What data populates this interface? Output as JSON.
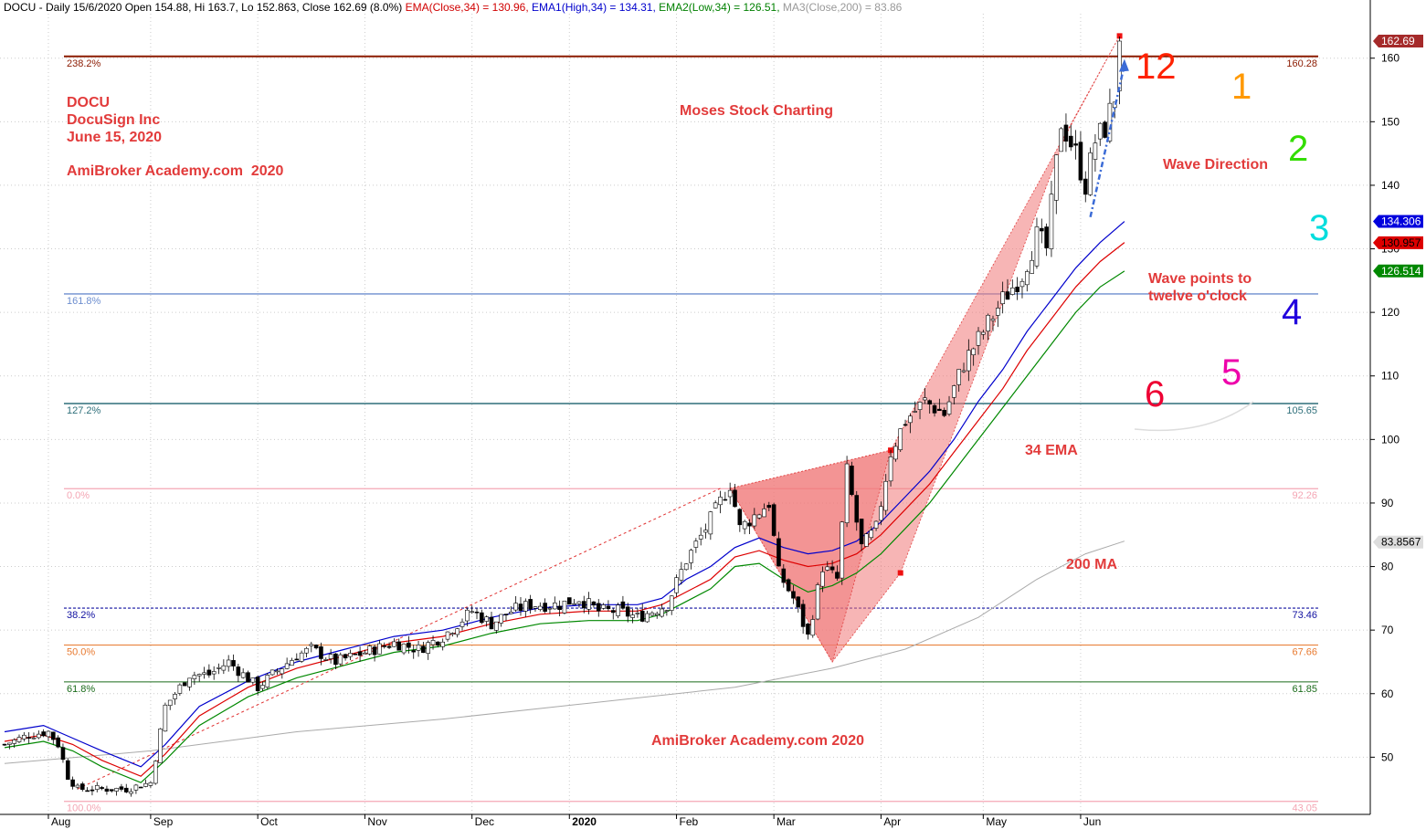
{
  "header": {
    "symbol_info": "DOCU - Daily 15/6/2020 Open 154.88, Hi 163.7, Lo 152.863, Close 162.69 (8.0%)",
    "ema_close": {
      "label": "EMA(Close,34) = 130.96,",
      "color": "#d00000"
    },
    "ema_high": {
      "label": "EMA1(High,34) = 134.31,",
      "color": "#0000cc"
    },
    "ema_low": {
      "label": "EMA2(Low,34) = 126.51,",
      "color": "#008000"
    },
    "ma200": {
      "label": "MA3(Close,200) = 83.86",
      "color": "#999999"
    }
  },
  "annotations": {
    "info_lines": [
      "DOCU",
      "DocuSign Inc",
      "June 15, 2020"
    ],
    "site_top": "AmiBroker Academy.com  2020",
    "title_center": "Moses Stock Charting",
    "site_bottom": "AmiBroker Academy.com 2020",
    "ema_label": "34 EMA",
    "ma_label": "200 MA",
    "wave_direction": "Wave Direction",
    "wave_points": [
      "Wave points to",
      "twelve o'clock"
    ]
  },
  "clock": [
    {
      "n": "12",
      "color": "#ff2200"
    },
    {
      "n": "1",
      "color": "#ff9900"
    },
    {
      "n": "2",
      "color": "#33dd00"
    },
    {
      "n": "3",
      "color": "#00dddd"
    },
    {
      "n": "4",
      "color": "#2200dd"
    },
    {
      "n": "5",
      "color": "#ee00aa"
    },
    {
      "n": "6",
      "color": "#ee0033"
    }
  ],
  "price_tags": [
    {
      "value": "162.69",
      "bg": "#a52a2a",
      "fg": "#ffffff",
      "y": 162.69
    },
    {
      "value": "134.306",
      "bg": "#0000dd",
      "fg": "#ffffff",
      "y": 134.306
    },
    {
      "value": "130.957",
      "bg": "#dd0000",
      "fg": "#000000",
      "y": 130.957
    },
    {
      "value": "126.514",
      "bg": "#008800",
      "fg": "#ffffff",
      "y": 126.514
    },
    {
      "value": "83.8567",
      "bg": "#dddddd",
      "fg": "#000000",
      "y": 83.8567
    }
  ],
  "chart_data": {
    "type": "candlestick",
    "title": "DOCU - Daily 15/6/2020",
    "ylim": [
      41,
      167
    ],
    "y_ticks": [
      50,
      60,
      70,
      80,
      90,
      100,
      110,
      120,
      130,
      140,
      150,
      160
    ],
    "x_ticks": [
      "Aug",
      "Sep",
      "Oct",
      "Nov",
      "Dec",
      "2020",
      "Feb",
      "Mar",
      "Apr",
      "May",
      "Jun"
    ],
    "x_tick_days": [
      9,
      30,
      52,
      74,
      96,
      116,
      138,
      158,
      180,
      201,
      221
    ],
    "n_days": 235,
    "fib_levels": [
      {
        "pct": "238.2%",
        "value": "160.28",
        "y": 160.28,
        "color": "#8b1a00",
        "width": 2,
        "dash": ""
      },
      {
        "pct": "161.8%",
        "value": "",
        "y": 122.9,
        "color": "#6d8ecf",
        "width": 1.3,
        "dash": ""
      },
      {
        "pct": "127.2%",
        "value": "105.65",
        "y": 105.65,
        "color": "#2e6f7a",
        "width": 1.5,
        "dash": ""
      },
      {
        "pct": "0.0%",
        "value": "92.26",
        "y": 92.26,
        "color": "#f4a6b4",
        "width": 1.3,
        "dash": ""
      },
      {
        "pct": "38.2%",
        "value": "73.46",
        "y": 73.46,
        "color": "#1010a0",
        "width": 1.2,
        "dash": "3,2"
      },
      {
        "pct": "50.0%",
        "value": "67.66",
        "y": 67.66,
        "color": "#e87a30",
        "width": 1,
        "dash": ""
      },
      {
        "pct": "61.8%",
        "value": "61.85",
        "y": 61.85,
        "color": "#1a6b1a",
        "width": 1,
        "dash": ""
      },
      {
        "pct": "100.0%",
        "value": "43.05",
        "y": 43.05,
        "color": "#f4a6b4",
        "width": 1.3,
        "dash": ""
      }
    ],
    "close_path": [
      [
        0,
        52
      ],
      [
        5,
        53.5
      ],
      [
        9,
        54
      ],
      [
        11,
        52
      ],
      [
        13,
        47
      ],
      [
        15,
        45
      ],
      [
        20,
        45
      ],
      [
        25,
        45
      ],
      [
        30,
        46
      ],
      [
        33,
        58
      ],
      [
        38,
        63
      ],
      [
        42,
        63
      ],
      [
        46,
        65
      ],
      [
        52,
        61
      ],
      [
        55,
        63
      ],
      [
        60,
        66
      ],
      [
        63,
        67
      ],
      [
        68,
        65
      ],
      [
        72,
        66
      ],
      [
        76,
        67
      ],
      [
        80,
        68
      ],
      [
        85,
        67
      ],
      [
        90,
        69
      ],
      [
        96,
        73
      ],
      [
        100,
        71
      ],
      [
        104,
        73
      ],
      [
        108,
        74
      ],
      [
        114,
        74
      ],
      [
        118,
        75
      ],
      [
        122,
        73
      ],
      [
        126,
        73
      ],
      [
        130,
        72
      ],
      [
        136,
        74
      ],
      [
        140,
        81
      ],
      [
        144,
        86
      ],
      [
        149,
        93
      ],
      [
        151,
        86
      ],
      [
        154,
        88
      ],
      [
        157,
        90
      ],
      [
        159,
        79
      ],
      [
        162,
        75
      ],
      [
        165,
        69
      ],
      [
        168,
        80
      ],
      [
        171,
        78
      ],
      [
        173,
        95
      ],
      [
        176,
        83
      ],
      [
        179,
        86
      ],
      [
        182,
        98
      ],
      [
        185,
        103
      ],
      [
        189,
        106
      ],
      [
        193,
        104
      ],
      [
        197,
        112
      ],
      [
        201,
        117
      ],
      [
        205,
        122
      ],
      [
        209,
        126
      ],
      [
        212,
        132
      ],
      [
        214,
        130
      ],
      [
        217,
        150
      ],
      [
        220,
        145
      ],
      [
        222,
        140
      ],
      [
        224,
        147
      ],
      [
        226,
        149
      ],
      [
        228,
        154
      ],
      [
        229,
        162.69
      ]
    ],
    "ema_high": [
      [
        0,
        54
      ],
      [
        8,
        55
      ],
      [
        14,
        53
      ],
      [
        20,
        51
      ],
      [
        28,
        48.5
      ],
      [
        33,
        52
      ],
      [
        40,
        58
      ],
      [
        50,
        62
      ],
      [
        60,
        65
      ],
      [
        70,
        67
      ],
      [
        80,
        69
      ],
      [
        90,
        70
      ],
      [
        100,
        72
      ],
      [
        110,
        73.5
      ],
      [
        120,
        74
      ],
      [
        130,
        74
      ],
      [
        135,
        75
      ],
      [
        140,
        78
      ],
      [
        145,
        80
      ],
      [
        150,
        83
      ],
      [
        155,
        84.5
      ],
      [
        160,
        83
      ],
      [
        165,
        82
      ],
      [
        170,
        82.5
      ],
      [
        175,
        84
      ],
      [
        180,
        87
      ],
      [
        185,
        91
      ],
      [
        190,
        95
      ],
      [
        195,
        100
      ],
      [
        200,
        106
      ],
      [
        205,
        111
      ],
      [
        210,
        117
      ],
      [
        215,
        122
      ],
      [
        220,
        127
      ],
      [
        225,
        131
      ],
      [
        230,
        134.3
      ]
    ],
    "ema_close": [
      [
        0,
        52.5
      ],
      [
        8,
        53.5
      ],
      [
        14,
        52
      ],
      [
        20,
        49.5
      ],
      [
        28,
        47
      ],
      [
        33,
        50.5
      ],
      [
        40,
        56.5
      ],
      [
        50,
        61
      ],
      [
        60,
        64
      ],
      [
        70,
        66
      ],
      [
        80,
        68
      ],
      [
        90,
        69
      ],
      [
        100,
        71
      ],
      [
        110,
        72.5
      ],
      [
        120,
        73
      ],
      [
        130,
        73
      ],
      [
        135,
        74
      ],
      [
        140,
        76
      ],
      [
        145,
        78
      ],
      [
        150,
        81.5
      ],
      [
        155,
        82.5
      ],
      [
        160,
        81
      ],
      [
        165,
        80
      ],
      [
        170,
        80.5
      ],
      [
        175,
        82
      ],
      [
        180,
        85
      ],
      [
        185,
        89
      ],
      [
        190,
        93
      ],
      [
        195,
        98
      ],
      [
        200,
        103
      ],
      [
        205,
        108
      ],
      [
        210,
        114
      ],
      [
        215,
        119
      ],
      [
        220,
        124
      ],
      [
        225,
        128
      ],
      [
        230,
        131
      ]
    ],
    "ema_low": [
      [
        0,
        51.5
      ],
      [
        8,
        52.5
      ],
      [
        14,
        51
      ],
      [
        20,
        48.5
      ],
      [
        28,
        46
      ],
      [
        33,
        49.5
      ],
      [
        40,
        55
      ],
      [
        50,
        59.5
      ],
      [
        60,
        62.5
      ],
      [
        70,
        64.5
      ],
      [
        80,
        66.5
      ],
      [
        90,
        67.5
      ],
      [
        100,
        69.5
      ],
      [
        110,
        71
      ],
      [
        120,
        71.5
      ],
      [
        130,
        71.5
      ],
      [
        135,
        72.5
      ],
      [
        140,
        74.5
      ],
      [
        145,
        76.5
      ],
      [
        150,
        80
      ],
      [
        155,
        80.5
      ],
      [
        160,
        78
      ],
      [
        165,
        76
      ],
      [
        170,
        77
      ],
      [
        175,
        79
      ],
      [
        180,
        82
      ],
      [
        185,
        86
      ],
      [
        190,
        90
      ],
      [
        195,
        95
      ],
      [
        200,
        100
      ],
      [
        205,
        105
      ],
      [
        210,
        110
      ],
      [
        215,
        115
      ],
      [
        220,
        120
      ],
      [
        225,
        124
      ],
      [
        230,
        126.5
      ]
    ],
    "ma200": [
      [
        0,
        49
      ],
      [
        30,
        51
      ],
      [
        60,
        54
      ],
      [
        90,
        56
      ],
      [
        120,
        58.5
      ],
      [
        150,
        61
      ],
      [
        170,
        64
      ],
      [
        185,
        67
      ],
      [
        200,
        72
      ],
      [
        212,
        78
      ],
      [
        222,
        82
      ],
      [
        230,
        84
      ]
    ],
    "wedge_top": [
      [
        149,
        92.3
      ],
      [
        182,
        98.3
      ],
      [
        229,
        163.5
      ]
    ],
    "wedge_bottom": [
      [
        170,
        65
      ],
      [
        184,
        79
      ],
      [
        218,
        148
      ]
    ],
    "trend_dashed": [
      [
        15,
        45
      ],
      [
        147,
        92.3
      ]
    ],
    "pivot_points": [
      [
        182,
        98.3
      ],
      [
        184,
        79
      ],
      [
        229,
        163.5
      ]
    ],
    "arrow": [
      [
        223,
        135
      ],
      [
        230,
        159
      ]
    ]
  }
}
